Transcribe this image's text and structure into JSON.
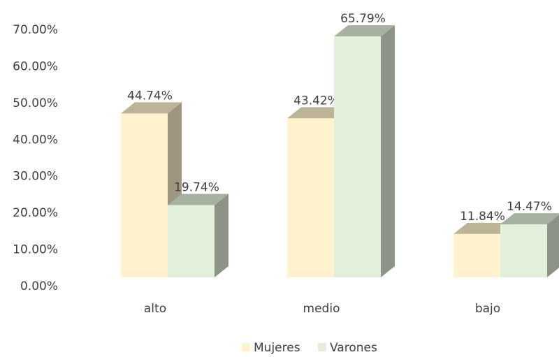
{
  "chart_data": {
    "type": "bar3d",
    "categories": [
      "alto",
      "medio",
      "bajo"
    ],
    "series": [
      {
        "name": "Mujeres",
        "color": "#fff2cc",
        "values": [
          44.74,
          43.42,
          11.84
        ],
        "value_labels": [
          "44.74%",
          "43.42%",
          "11.84%"
        ]
      },
      {
        "name": "Varones",
        "color": "#e2efda",
        "values": [
          19.74,
          65.79,
          14.47
        ],
        "value_labels": [
          "19.74%",
          "65.79%",
          "14.47%"
        ]
      }
    ],
    "ylim": [
      0,
      70
    ],
    "yticks": [
      {
        "value": 0,
        "label": "0.00%"
      },
      {
        "value": 10,
        "label": "10.00%"
      },
      {
        "value": 20,
        "label": "20.00%"
      },
      {
        "value": 30,
        "label": "30.00%"
      },
      {
        "value": 40,
        "label": "40.00%"
      },
      {
        "value": 50,
        "label": "50.00%"
      },
      {
        "value": 60,
        "label": "60.00%"
      },
      {
        "value": 70,
        "label": "70.00%"
      }
    ],
    "legend": "bottom"
  }
}
